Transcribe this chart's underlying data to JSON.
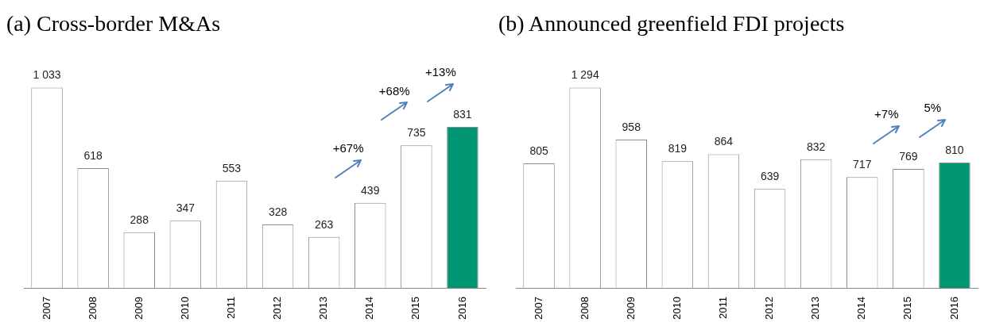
{
  "chart_data": [
    {
      "type": "bar",
      "title": "(a)  Cross-border M&As",
      "categories": [
        "2007",
        "2008",
        "2009",
        "2010",
        "2011",
        "2012",
        "2013",
        "2014",
        "2015",
        "2016"
      ],
      "values": [
        1033,
        618,
        288,
        347,
        553,
        328,
        263,
        439,
        735,
        831
      ],
      "value_labels": [
        "1 033",
        "618",
        "288",
        "347",
        "553",
        "328",
        "263",
        "439",
        "735",
        "831"
      ],
      "colors": [
        "#ffffff",
        "#ffffff",
        "#ffffff",
        "#ffffff",
        "#ffffff",
        "#ffffff",
        "#ffffff",
        "#ffffff",
        "#ffffff",
        "#009673"
      ],
      "annotations": [
        "+67%",
        "+68%",
        "+13%"
      ],
      "grid": false,
      "legend": false
    },
    {
      "type": "bar",
      "title": "(b)  Announced greenfield FDI projects",
      "categories": [
        "2007",
        "2008",
        "2009",
        "2010",
        "2011",
        "2012",
        "2013",
        "2014",
        "2015",
        "2016"
      ],
      "values": [
        805,
        1294,
        958,
        819,
        864,
        639,
        832,
        717,
        769,
        810
      ],
      "value_labels": [
        "805",
        "1 294",
        "958",
        "819",
        "864",
        "639",
        "832",
        "717",
        "769",
        "810"
      ],
      "colors": [
        "#ffffff",
        "#ffffff",
        "#ffffff",
        "#ffffff",
        "#ffffff",
        "#ffffff",
        "#ffffff",
        "#ffffff",
        "#ffffff",
        "#009673"
      ],
      "annotations": [
        "+7%",
        "5%"
      ],
      "grid": false,
      "legend": false
    }
  ]
}
